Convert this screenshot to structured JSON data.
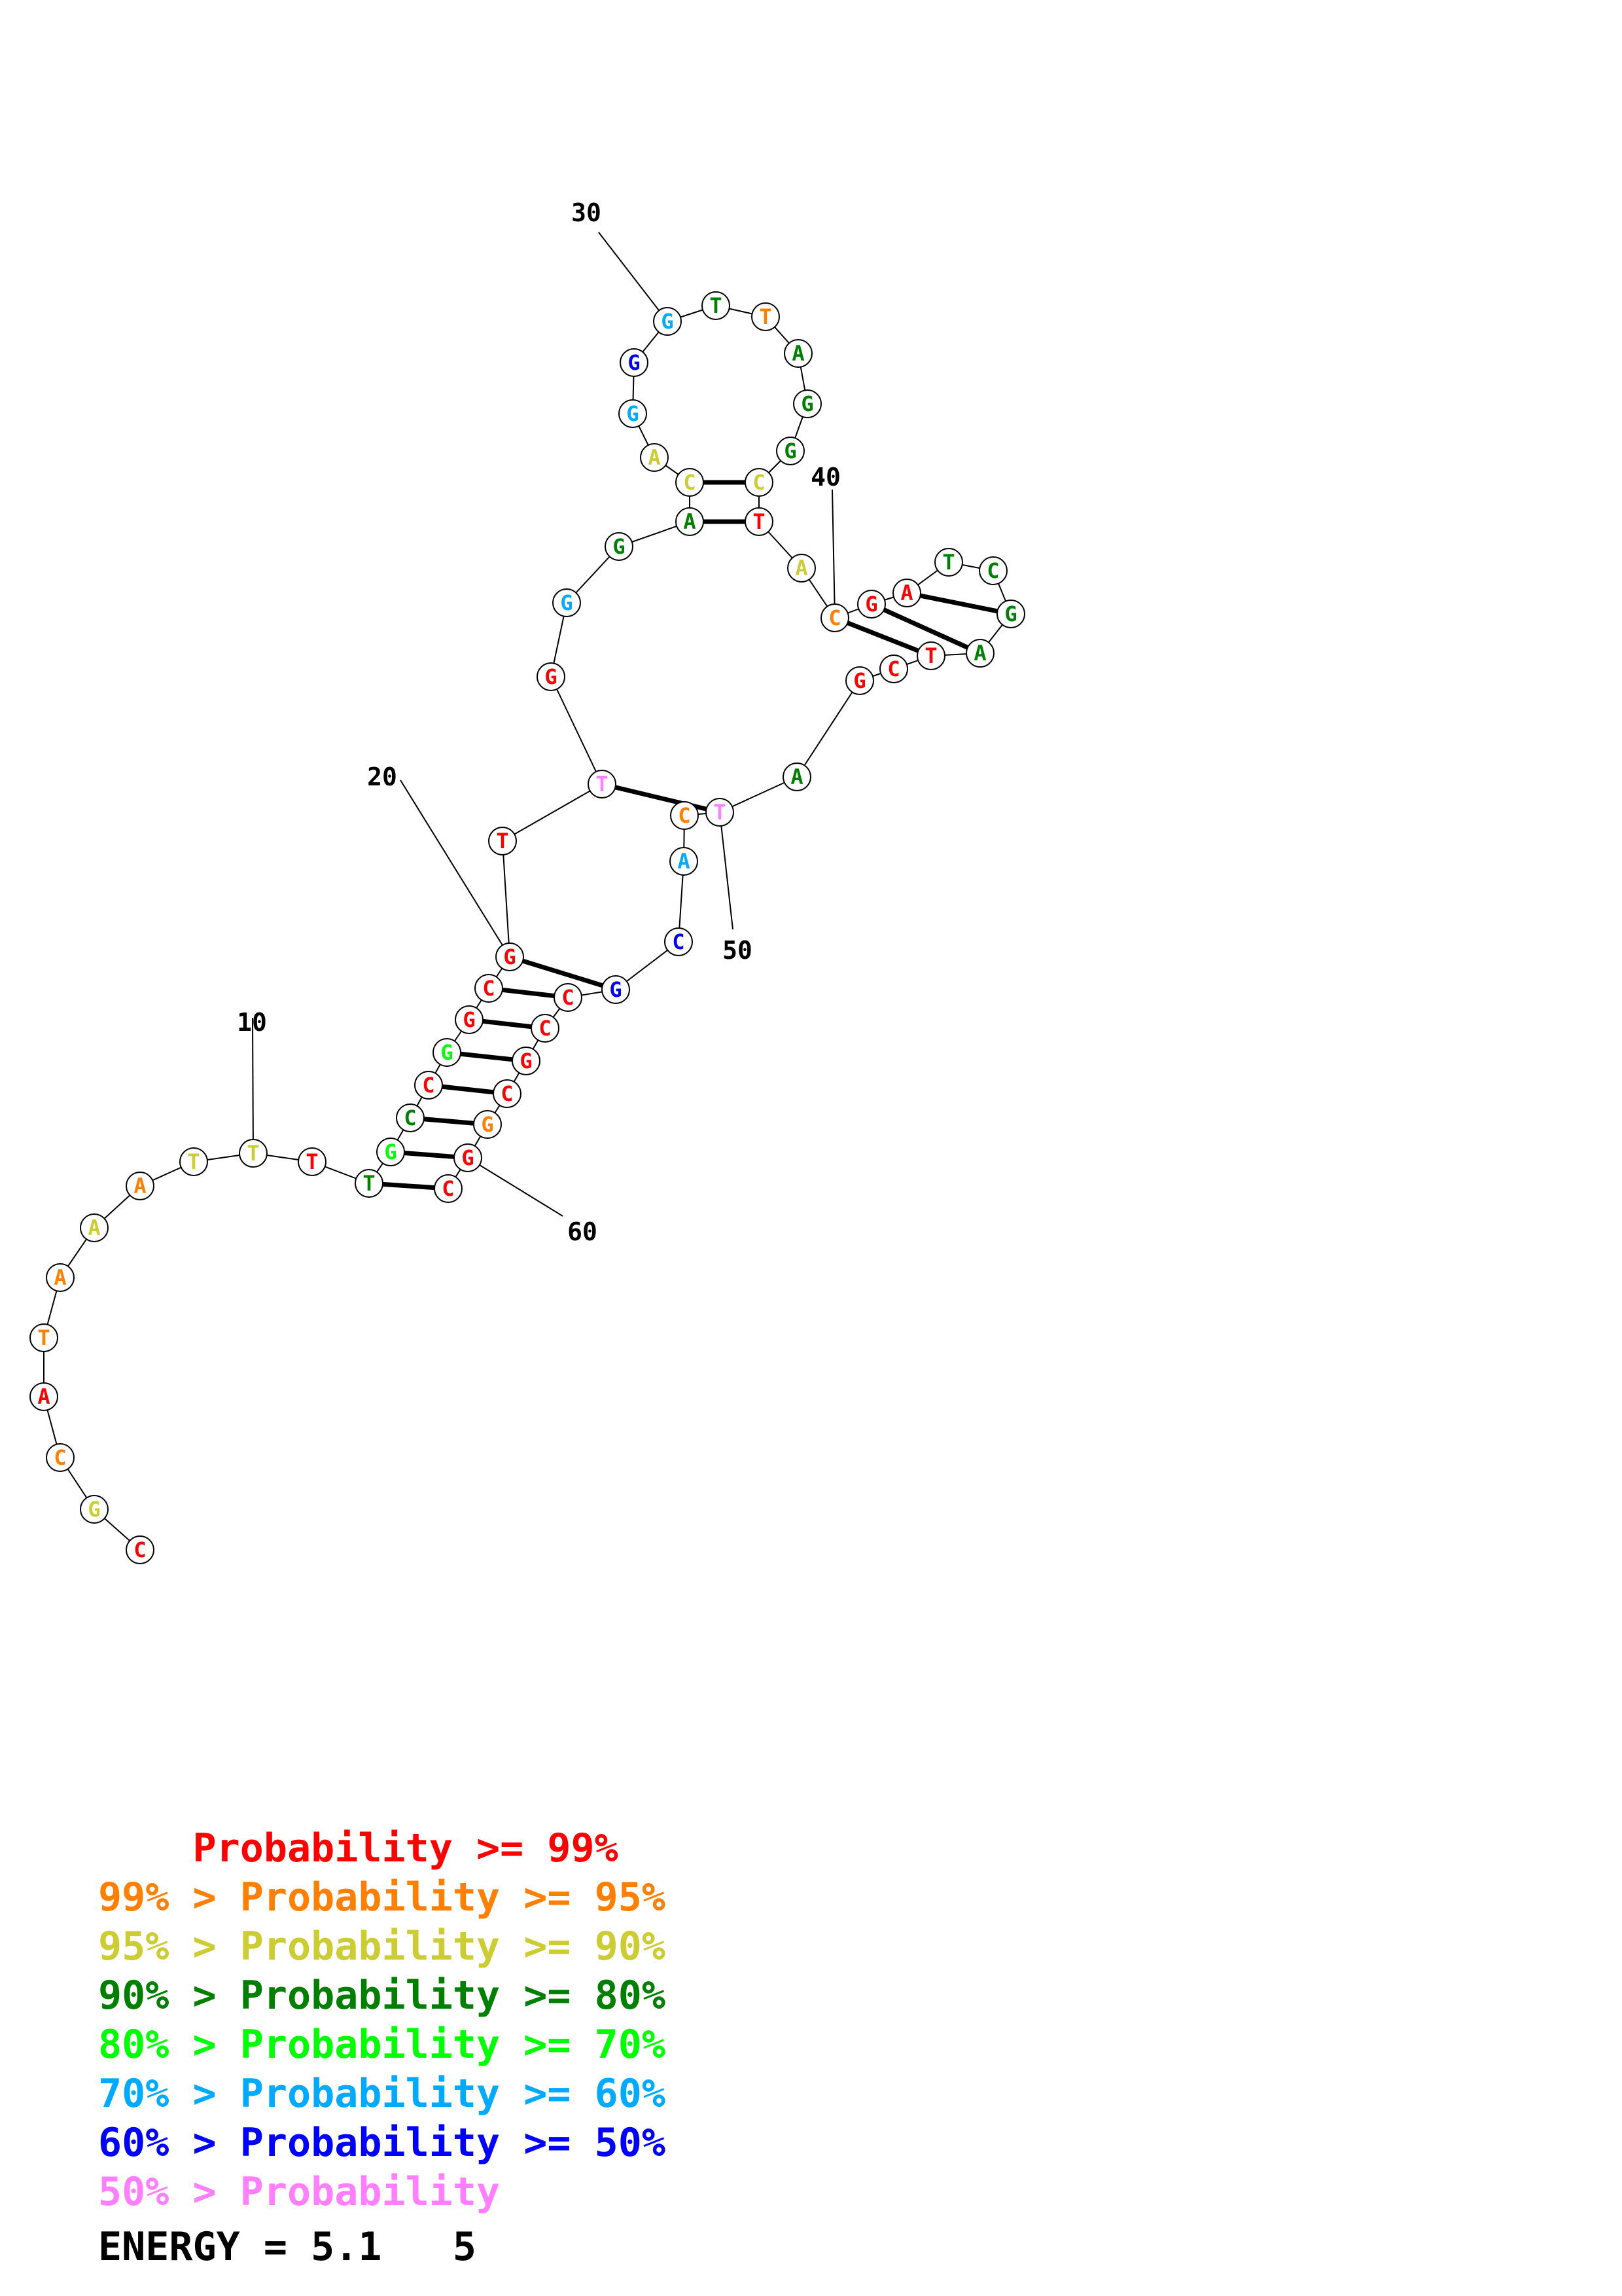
{
  "diagram": {
    "sequence": [
      "C",
      "G",
      "C",
      "A",
      "T",
      "A",
      "A",
      "A",
      "T",
      "T",
      "T",
      "T",
      "G",
      "C",
      "C",
      "G",
      "G",
      "C",
      "G",
      "T",
      "T",
      "G",
      "G",
      "G",
      "A",
      "C",
      "A",
      "G",
      "G",
      "G",
      "T",
      "T",
      "A",
      "G",
      "G",
      "C",
      "T",
      "A",
      "C",
      "G",
      "A",
      "T",
      "C",
      "G",
      "A",
      "T",
      "C",
      "G",
      "A",
      "T",
      "C",
      "A",
      "C",
      "G",
      "C",
      "C",
      "G",
      "C",
      "G",
      "G",
      "C"
    ],
    "probability_classes": [
      0,
      2,
      1,
      0,
      1,
      1,
      2,
      1,
      2,
      2,
      0,
      3,
      4,
      3,
      0,
      4,
      0,
      0,
      0,
      0,
      7,
      0,
      5,
      3,
      3,
      2,
      2,
      5,
      6,
      5,
      3,
      1,
      3,
      3,
      3,
      2,
      0,
      2,
      1,
      0,
      0,
      3,
      3,
      3,
      3,
      0,
      0,
      0,
      3,
      7,
      1,
      5,
      6,
      6,
      0,
      0,
      0,
      0,
      1,
      0,
      0
    ],
    "position_labels": [
      "10",
      "20",
      "30",
      "40",
      "50",
      "60"
    ],
    "pairs_description": "secondary structure base pairs drawn as bold lines"
  },
  "colors": {
    "p99": "#ff0000",
    "p95": "#ff7f00",
    "p90": "#cccc33",
    "p80": "#007f00",
    "p70": "#00ff00",
    "p60": "#00aaff",
    "p50": "#0000ff",
    "plow": "#ff7fff"
  },
  "legend": [
    {
      "prefix": "    ",
      "label": "Probability >= 99%",
      "color": "#ff0000"
    },
    {
      "prefix": "99% > ",
      "label": "Probability >= 95%",
      "color": "#ff7f00"
    },
    {
      "prefix": "95% > ",
      "label": "Probability >= 90%",
      "color": "#cccc33"
    },
    {
      "prefix": "90% > ",
      "label": "Probability >= 80%",
      "color": "#007f00"
    },
    {
      "prefix": "80% > ",
      "label": "Probability >= 70%",
      "color": "#00ff00"
    },
    {
      "prefix": "70% > ",
      "label": "Probability >= 60%",
      "color": "#00aaff"
    },
    {
      "prefix": "60% > ",
      "label": "Probability >= 50%",
      "color": "#0000ff"
    },
    {
      "prefix": "50% > ",
      "label": "Probability",
      "color": "#ff7fff"
    }
  ],
  "energy": {
    "label": "ENERGY = 5.1",
    "value": "5"
  }
}
